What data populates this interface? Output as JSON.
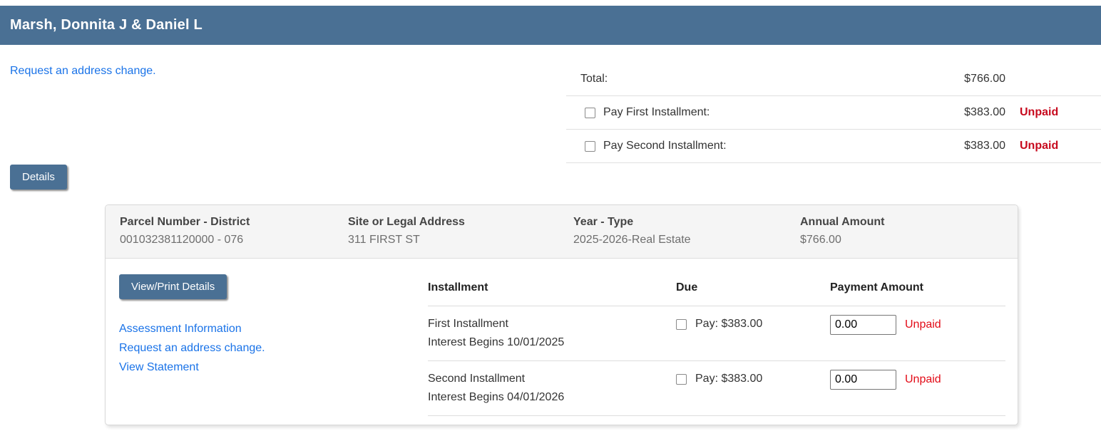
{
  "colors": {
    "header_bg": "#4a7094",
    "link_blue": "#1a73e8",
    "unpaid_bold_red": "#c70a1e",
    "unpaid_red": "#e30b17",
    "panel_header_bg": "#f5f5f5",
    "divider": "#e0e0e0"
  },
  "header": {
    "title": "Marsh, Donnita J & Daniel L"
  },
  "address_change_link": "Request an address change.",
  "summary": {
    "rows": [
      {
        "label": "Total:",
        "amount": "$766.00",
        "status": ""
      },
      {
        "label": "Pay First Installment:",
        "amount": "$383.00",
        "status": "Unpaid"
      },
      {
        "label": "Pay Second Installment:",
        "amount": "$383.00",
        "status": "Unpaid"
      }
    ]
  },
  "details_button_label": "Details",
  "panel": {
    "header_cols": [
      {
        "label": "Parcel Number - District",
        "value": "001032381120000 - 076"
      },
      {
        "label": "Site or Legal Address",
        "value": "311 FIRST ST"
      },
      {
        "label": "Year - Type",
        "value": "2025-2026-Real Estate"
      },
      {
        "label": "Annual Amount",
        "value": "$766.00"
      }
    ],
    "view_print_button_label": "View/Print Details",
    "links": [
      "Assessment Information",
      "Request an address change.",
      "View Statement"
    ],
    "table": {
      "headers": [
        "Installment",
        "Due",
        "Payment Amount"
      ],
      "rows": [
        {
          "name": "First Installment",
          "interest": "Interest Begins 10/01/2025",
          "due": "Pay: $383.00",
          "payment_value": "0.00",
          "status": "Unpaid"
        },
        {
          "name": "Second Installment",
          "interest": "Interest Begins 04/01/2026",
          "due": "Pay: $383.00",
          "payment_value": "0.00",
          "status": "Unpaid"
        }
      ]
    }
  }
}
